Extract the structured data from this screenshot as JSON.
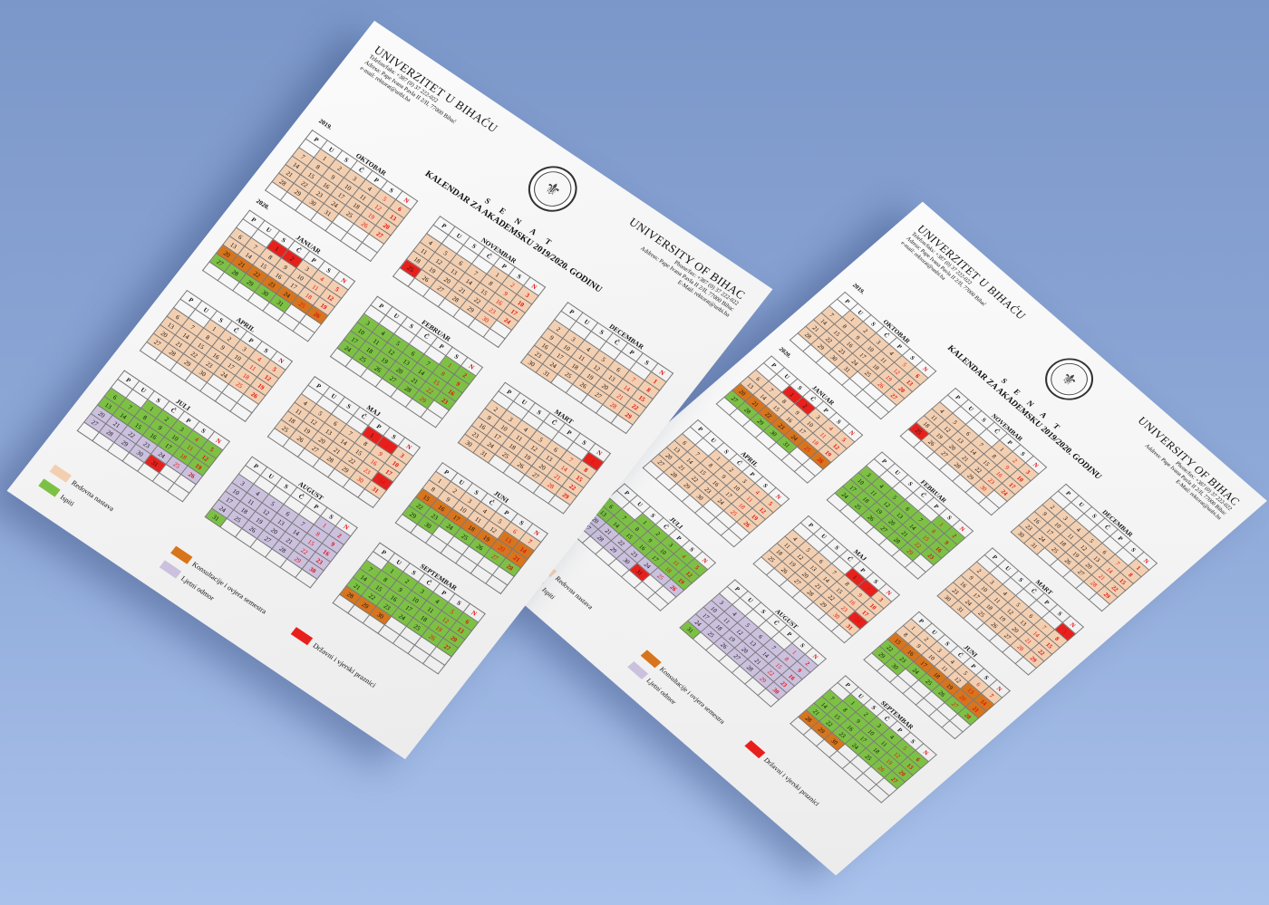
{
  "header": {
    "left_title": "UNIVERZITET U BIHAĆU",
    "left_lines": [
      "Telefon/faks: +387 (0) 37 222-022",
      "Adresa: Pape Ivana Pavla II 2/II, 77000 Bihać",
      "e-mail: rektorat@unbi.ba"
    ],
    "right_title": "UNIVERSITY OF BIHAC",
    "right_lines": [
      "Phone/fax: +387 (0) 37 222-022",
      "Address: Pape Ivana Pavla II 2/II, 77000 Bihac",
      "E-Mail: rektorat@unbi.ba"
    ],
    "senat": "S E N A T",
    "title": "KALENDAR ZA AKADEMSKU 2019/2020. GODINU"
  },
  "weekdays": [
    "P",
    "U",
    "S",
    "Č",
    "P",
    "S",
    "N"
  ],
  "colors": {
    "nastava": "#f3cfb1",
    "ispiti": "#7cc144",
    "konsultacije": "#d7741c",
    "odmor": "#cbc1de",
    "praznik": "#e8201c"
  },
  "months": [
    {
      "name": "OKTOBAR",
      "year": "2019.",
      "offset": 1,
      "days": 31,
      "ranges": [
        [
          "nastava",
          1,
          31
        ]
      ]
    },
    {
      "name": "NOVEMBAR",
      "year": "",
      "offset": 4,
      "days": 30,
      "ranges": [
        [
          "nastava",
          1,
          30
        ],
        [
          "praznik",
          25,
          25
        ]
      ]
    },
    {
      "name": "DECEMBAR",
      "year": "",
      "offset": 6,
      "days": 31,
      "ranges": [
        [
          "nastava",
          1,
          31
        ]
      ]
    },
    {
      "name": "JANUAR",
      "year": "2020.",
      "offset": 2,
      "days": 31,
      "ranges": [
        [
          "praznik",
          1,
          2
        ],
        [
          "nastava",
          3,
          19
        ],
        [
          "konsultacije",
          20,
          26
        ],
        [
          "ispiti",
          27,
          31
        ]
      ]
    },
    {
      "name": "FEBRUAR",
      "year": "",
      "offset": 5,
      "days": 29,
      "ranges": [
        [
          "ispiti",
          1,
          29
        ]
      ]
    },
    {
      "name": "MART",
      "year": "",
      "offset": 6,
      "days": 31,
      "ranges": [
        [
          "praznik",
          1,
          1
        ],
        [
          "nastava",
          2,
          31
        ]
      ]
    },
    {
      "name": "APRIL",
      "year": "",
      "offset": 2,
      "days": 30,
      "ranges": [
        [
          "nastava",
          1,
          30
        ]
      ]
    },
    {
      "name": "MAJ",
      "year": "",
      "offset": 4,
      "days": 31,
      "ranges": [
        [
          "praznik",
          1,
          2
        ],
        [
          "nastava",
          3,
          31
        ],
        [
          "praznik",
          24,
          24
        ]
      ]
    },
    {
      "name": "JUNI",
      "year": "",
      "offset": 0,
      "days": 30,
      "ranges": [
        [
          "nastava",
          1,
          12
        ],
        [
          "konsultacije",
          13,
          21
        ],
        [
          "ispiti",
          22,
          30
        ]
      ]
    },
    {
      "name": "JULI",
      "year": "",
      "offset": 2,
      "days": 31,
      "ranges": [
        [
          "ispiti",
          1,
          19
        ],
        [
          "odmor",
          20,
          30
        ],
        [
          "praznik",
          31,
          31
        ]
      ]
    },
    {
      "name": "AUGUST",
      "year": "",
      "offset": 5,
      "days": 31,
      "ranges": [
        [
          "odmor",
          1,
          30
        ],
        [
          "ispiti",
          31,
          31
        ]
      ]
    },
    {
      "name": "SEPTEMBAR",
      "year": "",
      "offset": 1,
      "days": 30,
      "ranges": [
        [
          "ispiti",
          1,
          27
        ],
        [
          "konsultacije",
          28,
          30
        ]
      ]
    }
  ],
  "legend": [
    {
      "key": "nastava",
      "label": "Redovna nastava"
    },
    {
      "key": "konsultacije",
      "label": "Konsultacije i ovjera semestra"
    },
    {
      "key": "praznik",
      "label": "Državni i vjerski praznici"
    },
    {
      "key": "ispiti",
      "label": "Ispiti"
    },
    {
      "key": "odmor",
      "label": "Ljetni odmor"
    }
  ]
}
